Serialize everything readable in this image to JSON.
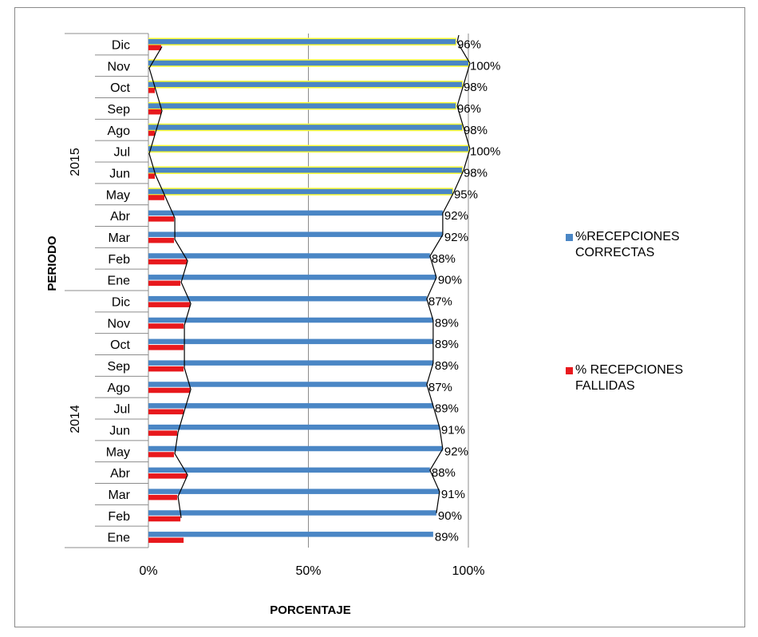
{
  "chart_data": {
    "type": "bar",
    "orientation": "horizontal",
    "xlabel": "PORCENTAJE",
    "ylabel": "PERIODO",
    "xlim": [
      0,
      100
    ],
    "x_ticks": [
      "0%",
      "50%",
      "100%"
    ],
    "grid": "vertical",
    "legend_position": "right",
    "year_groups": [
      {
        "label": "2015",
        "months": [
          "Dic",
          "Nov",
          "Oct",
          "Sep",
          "Ago",
          "Jul",
          "Jun",
          "May",
          "Abr",
          "Mar",
          "Feb",
          "Ene"
        ]
      },
      {
        "label": "2014",
        "months": [
          "Dic",
          "Nov",
          "Oct",
          "Sep",
          "Ago",
          "Jul",
          "Jun",
          "May",
          "Abr",
          "Mar",
          "Feb",
          "Ene"
        ]
      }
    ],
    "categories": [
      "2015 Dic",
      "2015 Nov",
      "2015 Oct",
      "2015 Sep",
      "2015 Ago",
      "2015 Jul",
      "2015 Jun",
      "2015 May",
      "2015 Abr",
      "2015 Mar",
      "2015 Feb",
      "2015 Ene",
      "2014 Dic",
      "2014 Nov",
      "2014 Oct",
      "2014 Sep",
      "2014 Ago",
      "2014 Jul",
      "2014 Jun",
      "2014 May",
      "2014 Abr",
      "2014 Mar",
      "2014 Feb",
      "2014 Ene"
    ],
    "series": [
      {
        "name": "%RECEPCIONES CORRECTAS",
        "color": "#4a86c5",
        "values": [
          96,
          100,
          98,
          96,
          98,
          100,
          98,
          95,
          92,
          92,
          88,
          90,
          87,
          89,
          89,
          89,
          87,
          89,
          91,
          92,
          88,
          91,
          90,
          89
        ],
        "data_labels": [
          "96%",
          "100%",
          "98%",
          "96%",
          "98%",
          "100%",
          "98%",
          "95%",
          "92%",
          "92%",
          "88%",
          "90%",
          "87%",
          "89%",
          "89%",
          "89%",
          "87%",
          "89%",
          "91%",
          "92%",
          "88%",
          "91%",
          "90%",
          "89%"
        ]
      },
      {
        "name": "% RECEPCIONES FALLIDAS",
        "color": "#e8191d",
        "values": [
          4,
          0,
          2,
          4,
          2,
          0,
          2,
          5,
          8,
          8,
          12,
          10,
          13,
          11,
          11,
          11,
          13,
          11,
          9,
          8,
          12,
          9,
          10,
          11
        ]
      }
    ],
    "highlight_color": "#ffff33",
    "highlighted_rows": 8,
    "trend_line_color": "#000000"
  }
}
